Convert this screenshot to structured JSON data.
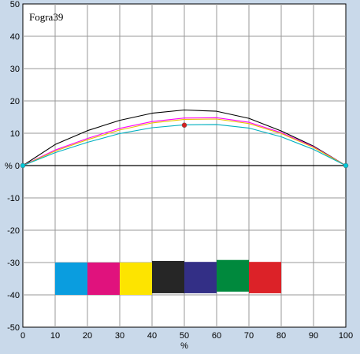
{
  "chart_data": {
    "type": "line",
    "title": "Fogra39",
    "xlabel": "%",
    "ylabel": "",
    "xlim": [
      0,
      100
    ],
    "ylim": [
      -50,
      50
    ],
    "x_ticks": [
      "0",
      "10",
      "20",
      "30",
      "40",
      "50",
      "60",
      "70",
      "80",
      "90",
      "100"
    ],
    "y_ticks": [
      "-50",
      "-40",
      "-30",
      "-20",
      "-10",
      "% 0",
      "10",
      "20",
      "30",
      "40",
      "50"
    ],
    "grid": true,
    "legend": "none",
    "series": [
      {
        "color": "#000000",
        "x": [
          0,
          10,
          20,
          30,
          40,
          50,
          60,
          70,
          80,
          90,
          100
        ],
        "y": [
          0,
          6.5,
          10.8,
          14.0,
          16.2,
          17.2,
          16.8,
          14.6,
          10.7,
          6.0,
          0
        ]
      },
      {
        "color": "#ff00ff",
        "x": [
          0,
          10,
          20,
          30,
          40,
          50,
          60,
          70,
          80,
          90,
          100
        ],
        "y": [
          0,
          4.8,
          8.4,
          11.5,
          13.6,
          14.7,
          14.8,
          13.4,
          10.2,
          5.8,
          0
        ]
      },
      {
        "color": "#e8c000",
        "x": [
          0,
          10,
          20,
          30,
          40,
          50,
          60,
          70,
          80,
          90,
          100
        ],
        "y": [
          0,
          4.5,
          8.0,
          11.0,
          13.2,
          14.3,
          14.4,
          13.0,
          9.9,
          5.6,
          0
        ]
      },
      {
        "color": "#00b0c0",
        "x": [
          0,
          10,
          20,
          30,
          40,
          50,
          60,
          70,
          80,
          90,
          100
        ],
        "y": [
          0,
          4.0,
          7.2,
          9.9,
          11.7,
          12.6,
          12.7,
          11.6,
          8.9,
          5.0,
          0
        ]
      }
    ],
    "points": [
      {
        "x": 0,
        "y": 0,
        "color": "#00c8d8"
      },
      {
        "x": 100,
        "y": 0,
        "color": "#00c8d8"
      },
      {
        "x": 50,
        "y": 12.5,
        "color": "#d62020"
      }
    ],
    "swatches": [
      {
        "x0": 10,
        "x1": 20,
        "y0": -40,
        "y1": -30,
        "color": "#0a9ddf"
      },
      {
        "x0": 20,
        "x1": 30,
        "y0": -40,
        "y1": -30,
        "color": "#e0127d"
      },
      {
        "x0": 30,
        "x1": 40,
        "y0": -40,
        "y1": -30,
        "color": "#fde400"
      },
      {
        "x0": 40,
        "x1": 50,
        "y0": -39.5,
        "y1": -29.5,
        "color": "#262626"
      },
      {
        "x0": 50,
        "x1": 60,
        "y0": -39.5,
        "y1": -29.8,
        "color": "#332f86"
      },
      {
        "x0": 60,
        "x1": 70,
        "y0": -39,
        "y1": -29.2,
        "color": "#00893d"
      },
      {
        "x0": 70,
        "x1": 80,
        "y0": -39.5,
        "y1": -29.8,
        "color": "#dc2228"
      }
    ]
  }
}
